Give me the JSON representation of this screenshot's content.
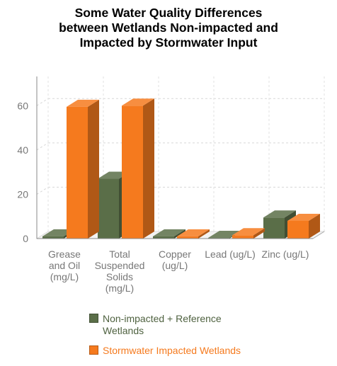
{
  "chart_data": {
    "type": "bar",
    "title_lines": [
      "Some Water Quality Differences",
      "between Wetlands Non-impacted and",
      "Impacted by Stormwater Input"
    ],
    "categories": [
      [
        "Grease",
        "and Oil",
        "(mg/L)"
      ],
      [
        "Total",
        "Suspended",
        "Solids",
        "(mg/L)"
      ],
      [
        "Copper",
        "(ug/L)"
      ],
      [
        "Lead (ug/L)"
      ],
      [
        "Zinc (ug/L)"
      ]
    ],
    "series": [
      {
        "name_lines": [
          "Non-impacted + Reference",
          "Wetlands"
        ],
        "color": "#5a6e48",
        "values": [
          1,
          27,
          1,
          0.3,
          9.5
        ]
      },
      {
        "name_lines": [
          "Stormwater Impacted Wetlands"
        ],
        "color": "#f57a1e",
        "values": [
          59.5,
          60,
          1,
          1.5,
          8
        ]
      }
    ],
    "ylim": [
      0,
      70
    ],
    "yticks": [
      0,
      20,
      40,
      60
    ],
    "grid": true,
    "legend_position": "bottom",
    "style": "3d"
  }
}
